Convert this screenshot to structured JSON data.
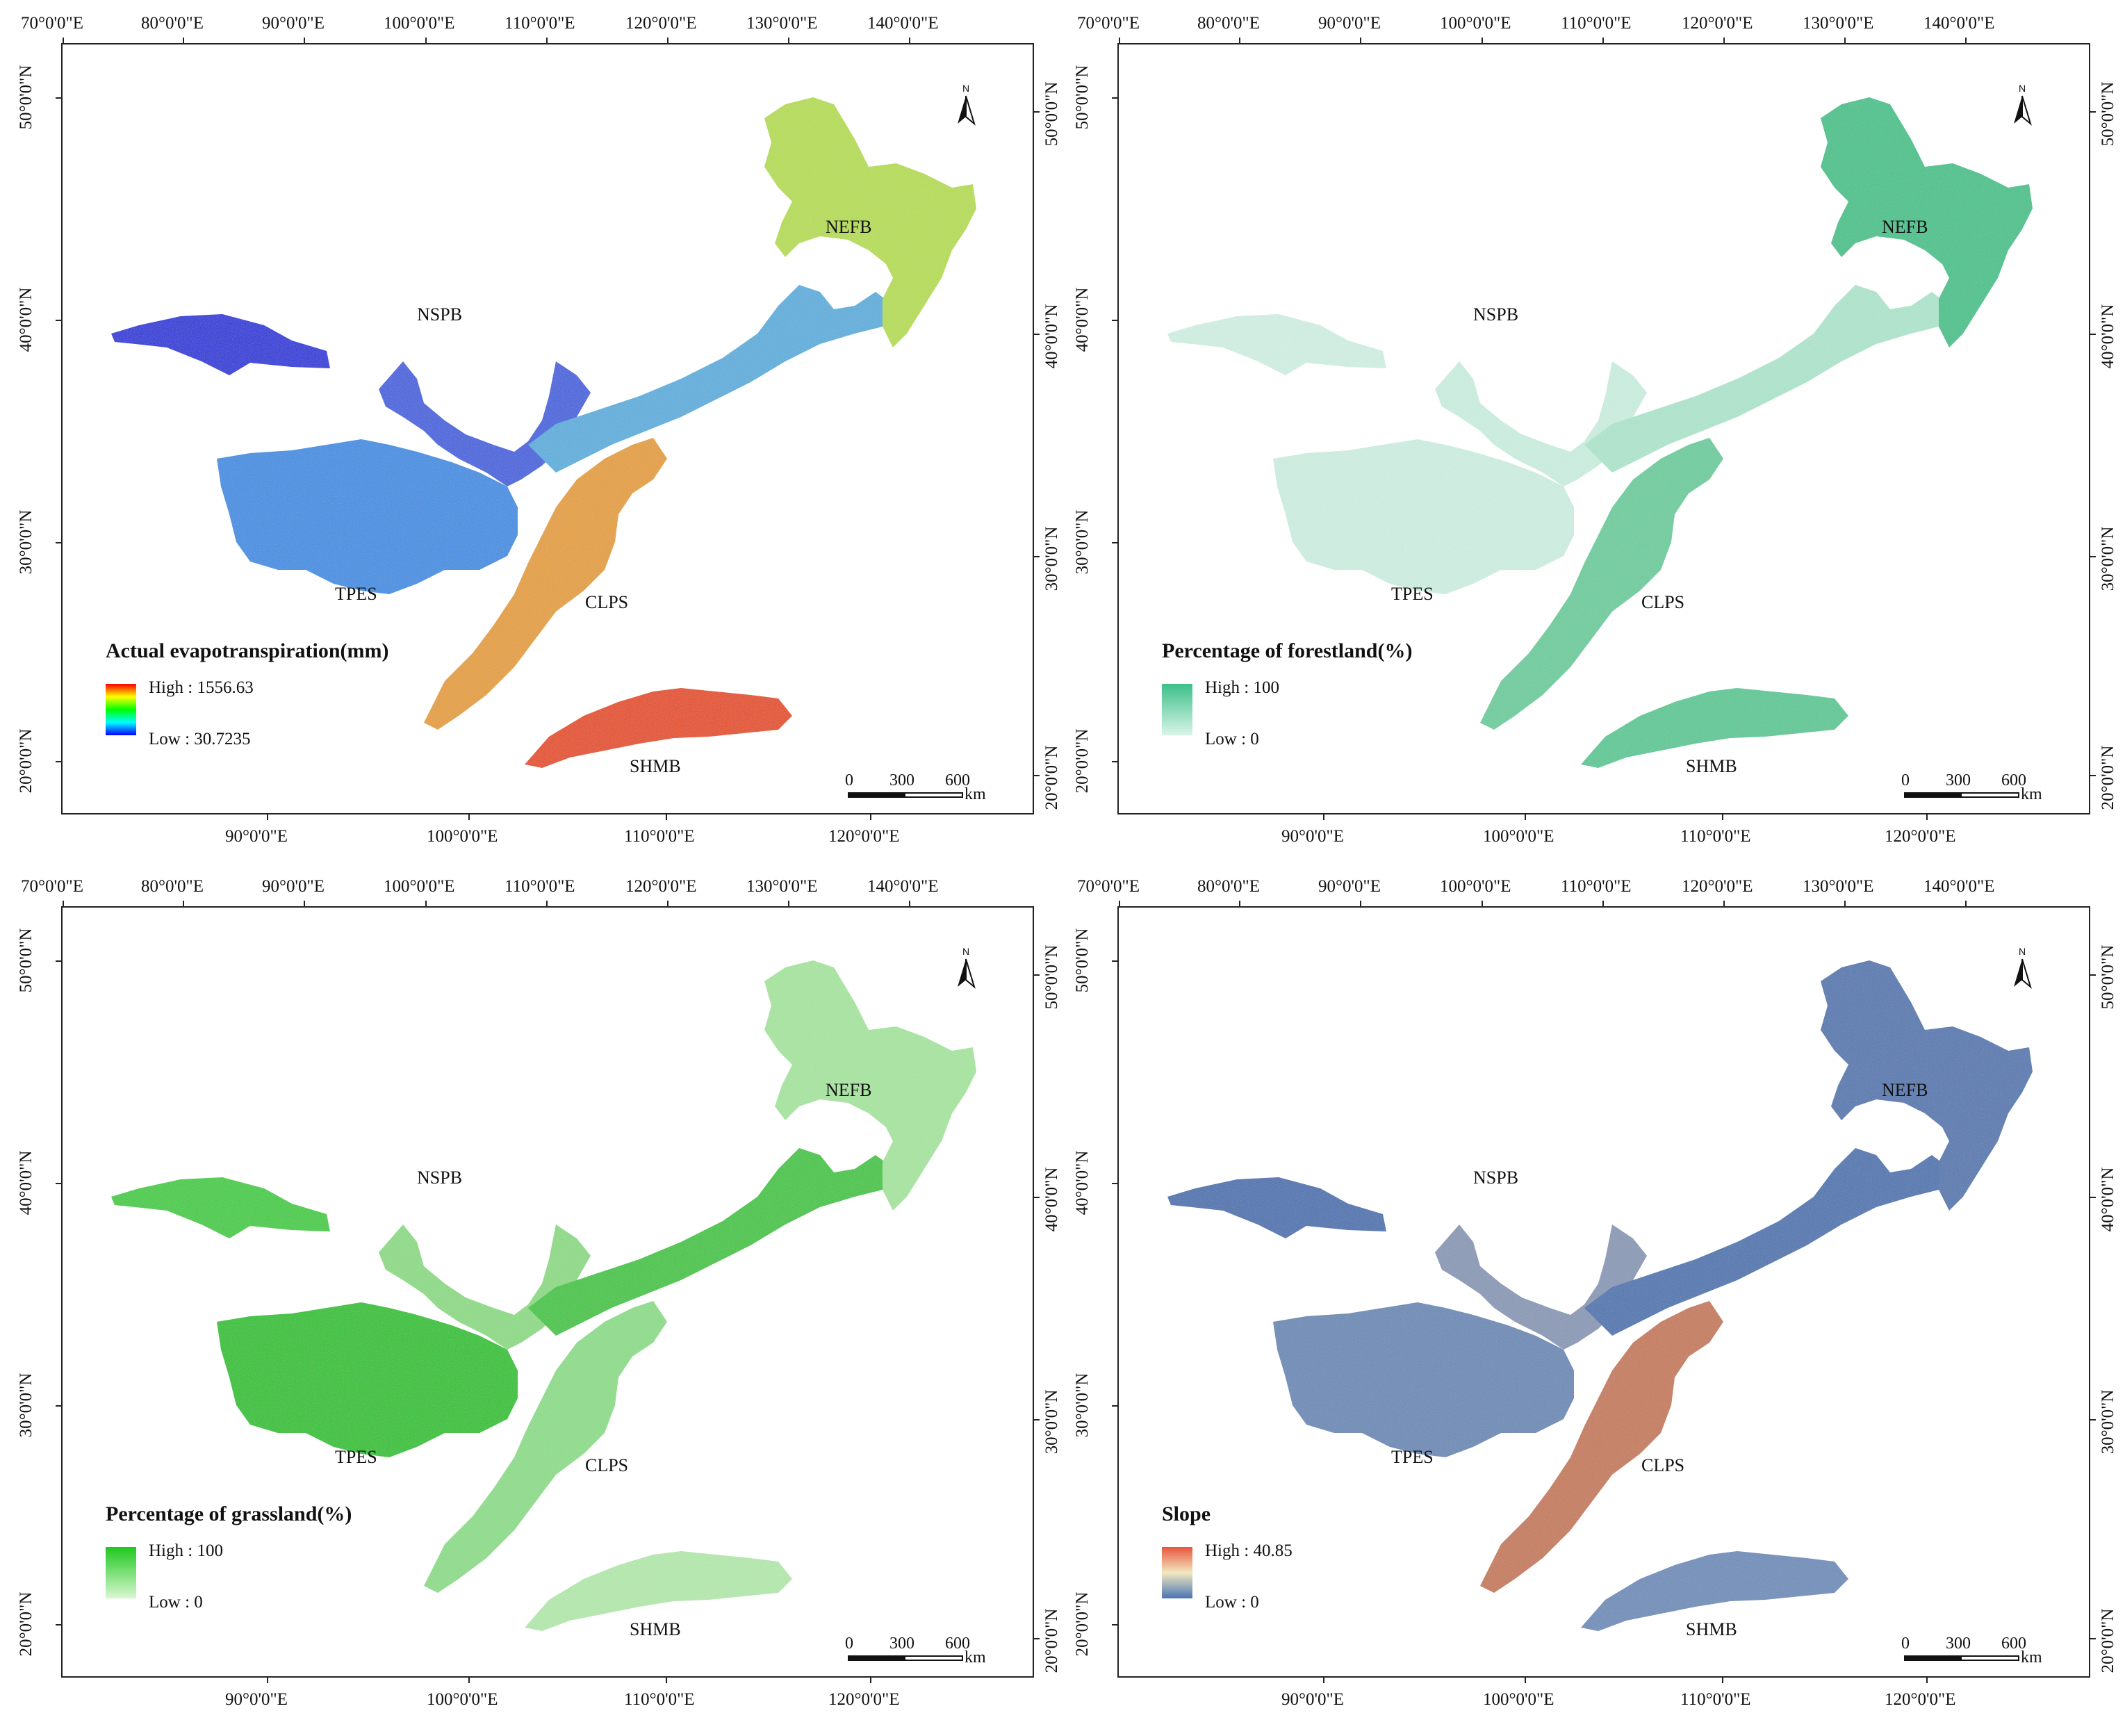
{
  "panels": [
    {
      "legend_title": "Actual evapotranspiration(mm)",
      "legend_high": "High : 1556.63",
      "legend_low": "Low : 30.7235",
      "gradient": [
        "#ff0000",
        "#ffff00",
        "#00ff00",
        "#00ffff",
        "#0000ff"
      ],
      "region_colors": {
        "NSPB": "#1a2bdc",
        "TPES": "#3a8fe6",
        "CLPS": "#e8a030",
        "SHMB": "#e84a10",
        "NEFB": "#b8e050",
        "belt": "#5ab0e0",
        "gansu": "#4060e0"
      }
    },
    {
      "legend_title": "Percentage of forestland(%)",
      "legend_high": "High : 100",
      "legend_low": "Low : 0",
      "gradient": [
        "#3dbf8a",
        "#d8f5e8"
      ],
      "region_colors": {
        "NSPB": "#d4f3e6",
        "TPES": "#d0f2e4",
        "CLPS": "#6ccf9f",
        "SHMB": "#5acb96",
        "NEFB": "#42c48c",
        "belt": "#b0e8cf",
        "gansu": "#cdf2e2"
      }
    },
    {
      "legend_title": "Percentage of grassland(%)",
      "legend_high": "High : 100",
      "legend_low": "Low : 0",
      "gradient": [
        "#1ec81e",
        "#d9f7d2"
      ],
      "region_colors": {
        "NSPB": "#3ccf3c",
        "TPES": "#22c422",
        "CLPS": "#8ee08a",
        "SHMB": "#b6ecaf",
        "NEFB": "#a8e8a0",
        "belt": "#3cc83c",
        "gansu": "#8ede86"
      }
    },
    {
      "legend_title": "Slope",
      "legend_high": "High : 40.85",
      "legend_low": "Low : 0",
      "gradient": [
        "#e8543c",
        "#f2e8c0",
        "#4a74b4"
      ],
      "region_colors": {
        "NSPB": "#4a72b2",
        "TPES": "#6a8ab8",
        "CLPS": "#c87a58",
        "SHMB": "#6e8ebc",
        "NEFB": "#5378b2",
        "belt": "#4c74b2",
        "gansu": "#8a9ab8"
      }
    }
  ],
  "top_ticks": [
    "70°0'0\"E",
    "80°0'0\"E",
    "90°0'0\"E",
    "100°0'0\"E",
    "110°0'0\"E",
    "120°0'0\"E",
    "130°0'0\"E",
    "140°0'0\"E"
  ],
  "bottom_ticks": [
    "90°0'0\"E",
    "100°0'0\"E",
    "110°0'0\"E",
    "120°0'0\"E"
  ],
  "left_ticks": [
    "50°0'0\"N",
    "40°0'0\"N",
    "30°0'0\"N",
    "20°0'0\"N"
  ],
  "right_ticks": [
    "50°0'0\"N",
    "40°0'0\"N",
    "30°0'0\"N",
    "20°0'0\"N"
  ],
  "regions": [
    "NSPB",
    "TPES",
    "CLPS",
    "SHMB",
    "NEFB"
  ],
  "north_label": "N",
  "scale": {
    "labels": [
      "0",
      "300",
      "600"
    ],
    "unit": "km"
  }
}
